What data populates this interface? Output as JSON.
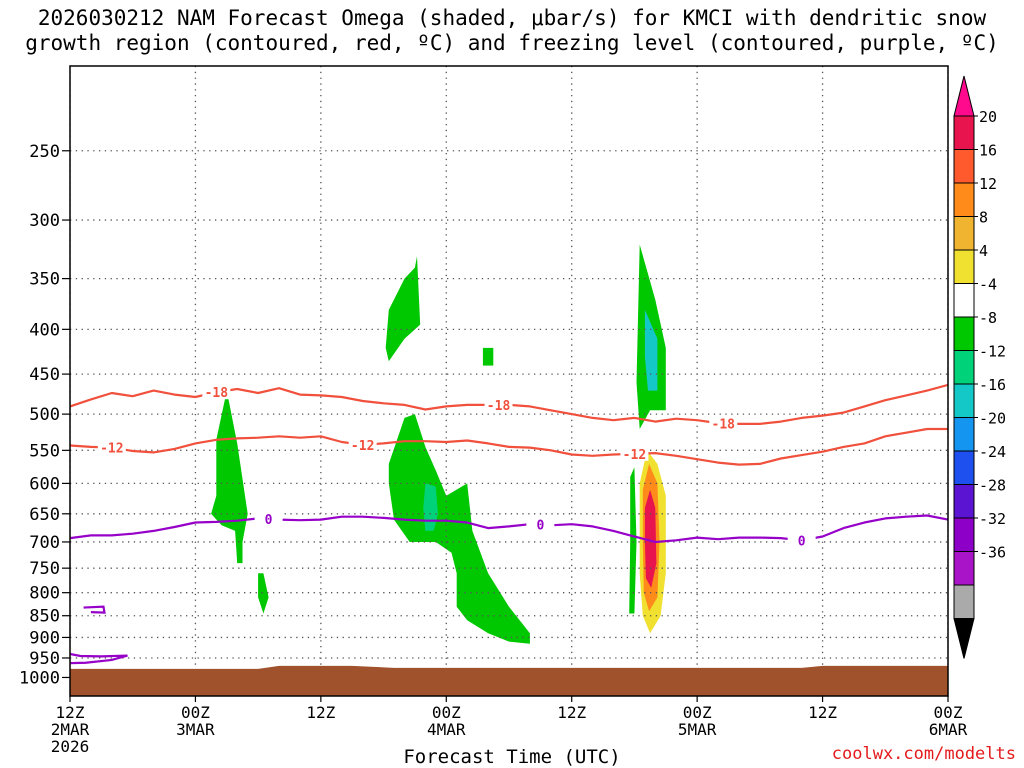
{
  "title_line1": "2026030212 NAM Forecast Omega (shaded, μbar/s) for KMCI with dendritic snow",
  "title_line2": "growth region (contoured, red, ºC) and freezing level (contoured, purple, ºC)",
  "credit": "coolwx.com/modelts",
  "chart_data": {
    "type": "time-pressure cross section",
    "title": "2026030212 NAM Forecast Omega (shaded, μbar/s) for KMCI with dendritic snow growth region (contoured, red, ºC) and freezing level (contoured, purple, ºC)",
    "xlabel": "Forecast Time (UTC)",
    "ylabel": "",
    "x_unit": "hours",
    "xlim": [
      0,
      84
    ],
    "x_ticks": [
      {
        "x": 0,
        "label": "12Z\n2MAR\n2026"
      },
      {
        "x": 12,
        "label": "00Z\n3MAR"
      },
      {
        "x": 24,
        "label": "12Z"
      },
      {
        "x": 36,
        "label": "00Z\n4MAR"
      },
      {
        "x": 48,
        "label": "12Z"
      },
      {
        "x": 60,
        "label": "00Z\n5MAR"
      },
      {
        "x": 72,
        "label": "12Z"
      },
      {
        "x": 84,
        "label": "00Z\n6MAR"
      }
    ],
    "y_scale": "log",
    "ylim": [
      1050,
      200
    ],
    "y_ticks": [
      250,
      300,
      350,
      400,
      450,
      500,
      550,
      600,
      650,
      700,
      750,
      800,
      850,
      900,
      950,
      1000
    ],
    "grid": true,
    "ground": {
      "top_hPa": 975,
      "color": "#a0522d"
    },
    "colorbar": {
      "ticks": [
        20,
        16,
        12,
        8,
        4,
        -4,
        -8,
        -12,
        -16,
        -20,
        -24,
        -28,
        -32,
        -36
      ],
      "colors": [
        "#e8144e",
        "#ff5a2e",
        "#ff8c1a",
        "#f0b430",
        "#f0e030",
        "#ffffff",
        "#00c800",
        "#00d27a",
        "#14c8c8",
        "#1496f0",
        "#1e50f0",
        "#5a14d2",
        "#8c00c8",
        "#aa14c8",
        "#aaaaaa"
      ],
      "top_color": "#ff0a8c",
      "bottom_color": "#000000"
    },
    "contours": [
      {
        "name": "-18",
        "color": "#f0503c",
        "points": [
          [
            0,
            490
          ],
          [
            2,
            481
          ],
          [
            4,
            473
          ],
          [
            6,
            477
          ],
          [
            8,
            470
          ],
          [
            10,
            475
          ],
          [
            12,
            478
          ],
          [
            14,
            472
          ],
          [
            16,
            468
          ],
          [
            18,
            473
          ],
          [
            20,
            467
          ],
          [
            22,
            475
          ],
          [
            24,
            476
          ],
          [
            26,
            478
          ],
          [
            28,
            483
          ],
          [
            30,
            486
          ],
          [
            32,
            488
          ],
          [
            34,
            494
          ],
          [
            36,
            490
          ],
          [
            38,
            488
          ],
          [
            40,
            488
          ],
          [
            42,
            488
          ],
          [
            44,
            490
          ],
          [
            46,
            495
          ],
          [
            48,
            500
          ],
          [
            50,
            505
          ],
          [
            52,
            508
          ],
          [
            54,
            505
          ],
          [
            56,
            510
          ],
          [
            58,
            506
          ],
          [
            60,
            508
          ],
          [
            62,
            512
          ],
          [
            64,
            513
          ],
          [
            66,
            513
          ],
          [
            68,
            510
          ],
          [
            70,
            505
          ],
          [
            72,
            502
          ],
          [
            74,
            498
          ],
          [
            76,
            490
          ],
          [
            78,
            482
          ],
          [
            80,
            476
          ],
          [
            82,
            470
          ],
          [
            84,
            463
          ]
        ],
        "label_x": [
          14,
          41,
          62.5
        ]
      },
      {
        "name": "-12",
        "color": "#f0503c",
        "points": [
          [
            0,
            543
          ],
          [
            2,
            545
          ],
          [
            4,
            546
          ],
          [
            6,
            551
          ],
          [
            8,
            553
          ],
          [
            10,
            548
          ],
          [
            12,
            540
          ],
          [
            14,
            535
          ],
          [
            16,
            533
          ],
          [
            18,
            532
          ],
          [
            20,
            530
          ],
          [
            22,
            532
          ],
          [
            24,
            530
          ],
          [
            26,
            538
          ],
          [
            28,
            542
          ],
          [
            30,
            540
          ],
          [
            32,
            537
          ],
          [
            34,
            537
          ],
          [
            36,
            538
          ],
          [
            38,
            536
          ],
          [
            40,
            540
          ],
          [
            42,
            545
          ],
          [
            44,
            546
          ],
          [
            46,
            550
          ],
          [
            48,
            556
          ],
          [
            50,
            558
          ],
          [
            52,
            556
          ],
          [
            54,
            555
          ],
          [
            56,
            554
          ],
          [
            58,
            558
          ],
          [
            60,
            563
          ],
          [
            62,
            568
          ],
          [
            64,
            571
          ],
          [
            66,
            570
          ],
          [
            68,
            562
          ],
          [
            70,
            557
          ],
          [
            72,
            552
          ],
          [
            74,
            545
          ],
          [
            76,
            540
          ],
          [
            78,
            530
          ],
          [
            80,
            525
          ],
          [
            82,
            520
          ],
          [
            84,
            520
          ]
        ],
        "label_x": [
          4,
          28,
          54
        ]
      },
      {
        "name": "0",
        "color": "#9600c8",
        "points": [
          [
            0,
            693
          ],
          [
            2,
            688
          ],
          [
            4,
            688
          ],
          [
            6,
            685
          ],
          [
            8,
            680
          ],
          [
            10,
            673
          ],
          [
            12,
            665
          ],
          [
            14,
            664
          ],
          [
            16,
            662
          ],
          [
            18,
            658
          ],
          [
            20,
            660
          ],
          [
            22,
            661
          ],
          [
            24,
            660
          ],
          [
            26,
            655
          ],
          [
            28,
            655
          ],
          [
            30,
            657
          ],
          [
            32,
            660
          ],
          [
            34,
            662
          ],
          [
            36,
            662
          ],
          [
            38,
            665
          ],
          [
            40,
            675
          ],
          [
            42,
            672
          ],
          [
            44,
            668
          ],
          [
            46,
            670
          ],
          [
            48,
            668
          ],
          [
            50,
            672
          ],
          [
            52,
            680
          ],
          [
            54,
            690
          ],
          [
            56,
            700
          ],
          [
            58,
            697
          ],
          [
            60,
            692
          ],
          [
            62,
            695
          ],
          [
            64,
            692
          ],
          [
            66,
            692
          ],
          [
            68,
            693
          ],
          [
            70,
            697
          ],
          [
            72,
            690
          ],
          [
            74,
            675
          ],
          [
            76,
            665
          ],
          [
            78,
            658
          ],
          [
            80,
            655
          ],
          [
            82,
            653
          ],
          [
            84,
            660
          ]
        ],
        "label_x": [
          19,
          45,
          70
        ]
      }
    ],
    "omega_regions": [
      {
        "color": "#00c800",
        "value_range": [
          -8,
          -4
        ],
        "points": [
          [
            14,
            535
          ],
          [
            15,
            470
          ],
          [
            16,
            540
          ],
          [
            17,
            650
          ],
          [
            16.5,
            700
          ],
          [
            16.5,
            740
          ],
          [
            16,
            740
          ],
          [
            15.8,
            680
          ],
          [
            14.5,
            670
          ],
          [
            13.5,
            650
          ],
          [
            14,
            620
          ]
        ]
      },
      {
        "color": "#00c800",
        "value_range": [
          -8,
          -4
        ],
        "points": [
          [
            18.5,
            760
          ],
          [
            19,
            810
          ],
          [
            18.5,
            845
          ],
          [
            18,
            810
          ],
          [
            18,
            760
          ]
        ]
      },
      {
        "color": "#00c800",
        "value_range": [
          -8,
          -4
        ],
        "points": [
          [
            30.5,
            570
          ],
          [
            32,
            505
          ],
          [
            33,
            500
          ],
          [
            34,
            545
          ],
          [
            35,
            580
          ],
          [
            36,
            620
          ],
          [
            38,
            600
          ],
          [
            38.5,
            680
          ],
          [
            40,
            760
          ],
          [
            42,
            830
          ],
          [
            44,
            890
          ],
          [
            44,
            915
          ],
          [
            42,
            910
          ],
          [
            40,
            890
          ],
          [
            38,
            860
          ],
          [
            37,
            830
          ],
          [
            37,
            760
          ],
          [
            36.5,
            720
          ],
          [
            35,
            700
          ],
          [
            32.5,
            700
          ],
          [
            31,
            660
          ],
          [
            30.5,
            600
          ]
        ]
      },
      {
        "color": "#00c800",
        "value_range": [
          -8,
          -4
        ],
        "points": [
          [
            30.5,
            380
          ],
          [
            32,
            350
          ],
          [
            33,
            340
          ],
          [
            33.2,
            330
          ],
          [
            33.5,
            395
          ],
          [
            32,
            410
          ],
          [
            30.5,
            435
          ],
          [
            30.2,
            420
          ]
        ]
      },
      {
        "color": "#00c800",
        "value_range": [
          -8,
          -4
        ],
        "points": [
          [
            39.5,
            420
          ],
          [
            40.5,
            420
          ],
          [
            40.5,
            440
          ],
          [
            39.5,
            440
          ]
        ]
      },
      {
        "color": "#00c800",
        "value_range": [
          -8,
          -4
        ],
        "points": [
          [
            54.5,
            320
          ],
          [
            56,
            370
          ],
          [
            57,
            420
          ],
          [
            57,
            495
          ],
          [
            55.5,
            495
          ],
          [
            54.5,
            520
          ],
          [
            54.2,
            460
          ]
        ]
      },
      {
        "color": "#00c800",
        "value_range": [
          -8,
          -4
        ],
        "points": [
          [
            54,
            575
          ],
          [
            54.2,
            700
          ],
          [
            54,
            845
          ],
          [
            53.5,
            845
          ],
          [
            53.6,
            700
          ],
          [
            53.6,
            590
          ]
        ]
      },
      {
        "color": "#00d27a",
        "value_range": [
          -12,
          -8
        ],
        "points": [
          [
            34,
            600
          ],
          [
            35,
            605
          ],
          [
            35.2,
            650
          ],
          [
            34.8,
            680
          ],
          [
            34,
            680
          ],
          [
            33.8,
            640
          ]
        ]
      },
      {
        "color": "#14c8c8",
        "value_range": [
          -16,
          -12
        ],
        "points": [
          [
            55,
            380
          ],
          [
            56.2,
            410
          ],
          [
            56.2,
            470
          ],
          [
            55.3,
            470
          ],
          [
            55,
            430
          ]
        ]
      },
      {
        "color": "#f0e030",
        "value_range": [
          4,
          8
        ],
        "points": [
          [
            54.5,
            600
          ],
          [
            55.2,
            550
          ],
          [
            56.2,
            570
          ],
          [
            57,
            620
          ],
          [
            57,
            760
          ],
          [
            56.5,
            850
          ],
          [
            55.5,
            890
          ],
          [
            54.8,
            850
          ],
          [
            54.5,
            760
          ]
        ]
      },
      {
        "color": "#ff8c1a",
        "value_range": [
          12,
          16
        ],
        "points": [
          [
            54.8,
            610
          ],
          [
            55.4,
            570
          ],
          [
            56.2,
            600
          ],
          [
            56.4,
            700
          ],
          [
            56.2,
            810
          ],
          [
            55.4,
            840
          ],
          [
            54.9,
            800
          ],
          [
            54.8,
            700
          ]
        ]
      },
      {
        "color": "#e8144e",
        "value_range": [
          16,
          20
        ],
        "points": [
          [
            55,
            640
          ],
          [
            55.5,
            610
          ],
          [
            56,
            640
          ],
          [
            56.1,
            740
          ],
          [
            55.6,
            790
          ],
          [
            55.1,
            770
          ],
          [
            55,
            700
          ]
        ]
      }
    ]
  }
}
